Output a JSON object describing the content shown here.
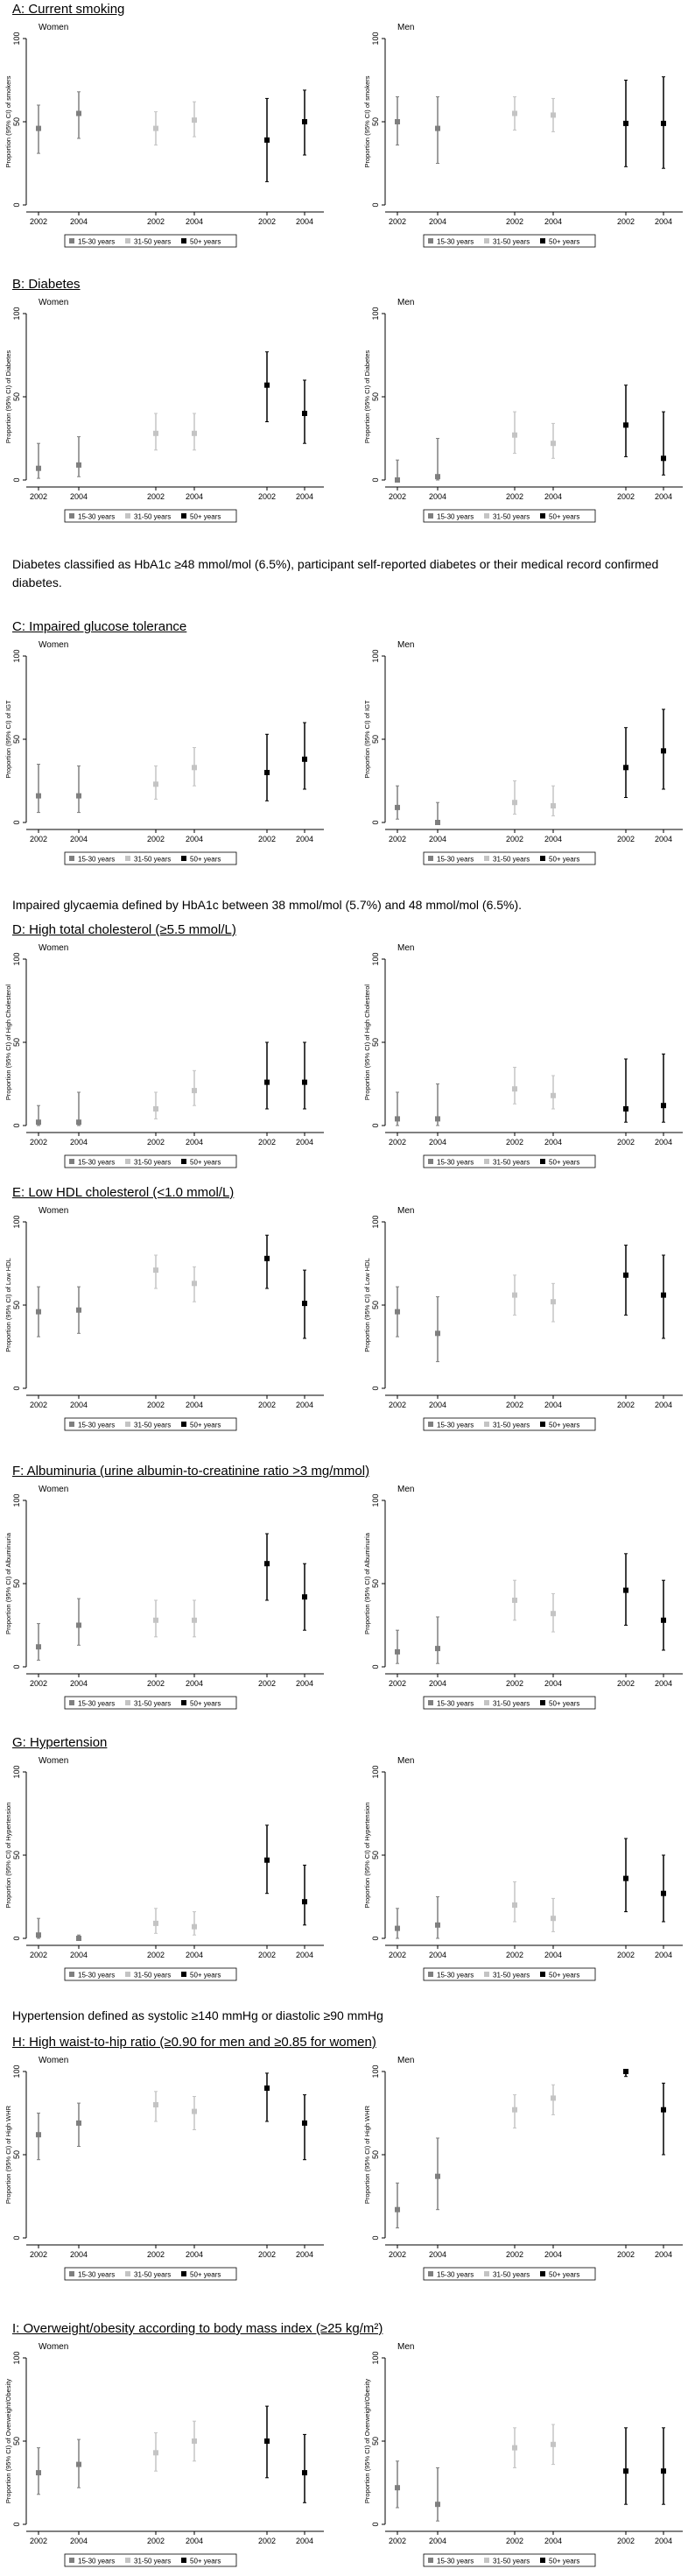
{
  "legend": [
    "15-30 years",
    "31-50 years",
    "50+ years"
  ],
  "colors": {
    "15-30 years": "#7f7f7f",
    "31-50 years": "#c4c4c4",
    "50+ years": "#000000"
  },
  "x_tick_labels": [
    "2002",
    "2004",
    "2002",
    "2004",
    "2002",
    "2004"
  ],
  "y_ticks": [
    0,
    50,
    100
  ],
  "panel_labels": [
    "Women",
    "Men"
  ],
  "notes": {
    "diabetes": "Diabetes classified as HbA1c ≥48 mmol/mol (6.5%), participant self-reported diabetes or their medical record confirmed diabetes.",
    "igt": "Impaired glycaemia defined by HbA1c between 38 mmol/mol (5.7%) and 48 mmol/mol (6.5%).",
    "hypertension": "Hypertension defined as systolic ≥140 mmHg or diastolic ≥90 mmHg"
  },
  "chart_data": [
    {
      "type": "scatter",
      "title": "A: Current smoking",
      "ylabel": "Proportion (95% CI) of smokers",
      "ylim": [
        0,
        100
      ],
      "women": {
        "15-30 years": [
          [
            46,
            31,
            60
          ],
          [
            55,
            40,
            68
          ]
        ],
        "31-50 years": [
          [
            46,
            36,
            56
          ],
          [
            51,
            41,
            62
          ]
        ],
        "50+ years": [
          [
            39,
            14,
            64
          ],
          [
            50,
            30,
            69
          ]
        ]
      },
      "men": {
        "15-30 years": [
          [
            50,
            36,
            65
          ],
          [
            46,
            25,
            65
          ]
        ],
        "31-50 years": [
          [
            55,
            45,
            65
          ],
          [
            54,
            44,
            64
          ]
        ],
        "50+ years": [
          [
            49,
            23,
            75
          ],
          [
            49,
            22,
            77
          ]
        ]
      }
    },
    {
      "type": "scatter",
      "title": "B: Diabetes",
      "ylabel": "Proportion (95% CI) of Diabetes",
      "ylim": [
        0,
        100
      ],
      "women": {
        "15-30 years": [
          [
            7,
            1,
            22
          ],
          [
            9,
            2,
            26
          ]
        ],
        "31-50 years": [
          [
            28,
            18,
            40
          ],
          [
            28,
            18,
            40
          ]
        ],
        "50+ years": [
          [
            57,
            35,
            77
          ],
          [
            40,
            22,
            60
          ]
        ]
      },
      "men": {
        "15-30 years": [
          [
            0,
            0,
            12
          ],
          [
            2,
            0,
            25
          ]
        ],
        "31-50 years": [
          [
            27,
            16,
            41
          ],
          [
            22,
            13,
            34
          ]
        ],
        "50+ years": [
          [
            33,
            14,
            57
          ],
          [
            13,
            3,
            41
          ]
        ]
      }
    },
    {
      "type": "scatter",
      "title": "C: Impaired glucose tolerance",
      "ylabel": "Proportion (95% CI) of IGT",
      "ylim": [
        0,
        100
      ],
      "women": {
        "15-30 years": [
          [
            16,
            6,
            35
          ],
          [
            16,
            6,
            34
          ]
        ],
        "31-50 years": [
          [
            23,
            14,
            34
          ],
          [
            33,
            22,
            45
          ]
        ],
        "50+ years": [
          [
            30,
            13,
            53
          ],
          [
            38,
            20,
            60
          ]
        ]
      },
      "men": {
        "15-30 years": [
          [
            9,
            2,
            22
          ],
          [
            0,
            0,
            12
          ]
        ],
        "31-50 years": [
          [
            12,
            5,
            25
          ],
          [
            10,
            4,
            22
          ]
        ],
        "50+ years": [
          [
            33,
            15,
            57
          ],
          [
            43,
            20,
            68
          ]
        ]
      }
    },
    {
      "type": "scatter",
      "title": "D: High total cholesterol (≥5.5 mmol/L)",
      "ylabel": "Proportion (95% CI) of High Cholesterol",
      "ylim": [
        0,
        100
      ],
      "women": {
        "15-30 years": [
          [
            2,
            0,
            12
          ],
          [
            2,
            0,
            20
          ]
        ],
        "31-50 years": [
          [
            10,
            4,
            20
          ],
          [
            21,
            12,
            33
          ]
        ],
        "50+ years": [
          [
            26,
            10,
            50
          ],
          [
            26,
            10,
            50
          ]
        ]
      },
      "men": {
        "15-30 years": [
          [
            4,
            0,
            20
          ],
          [
            4,
            0,
            25
          ]
        ],
        "31-50 years": [
          [
            22,
            13,
            35
          ],
          [
            18,
            10,
            30
          ]
        ],
        "50+ years": [
          [
            10,
            2,
            40
          ],
          [
            12,
            2,
            43
          ]
        ]
      }
    },
    {
      "type": "scatter",
      "title": "E: Low HDL cholesterol (<1.0 mmol/L)",
      "ylabel": "Proportion (95% CI) of Low HDL",
      "ylim": [
        0,
        100
      ],
      "women": {
        "15-30 years": [
          [
            46,
            31,
            61
          ],
          [
            47,
            33,
            61
          ]
        ],
        "31-50 years": [
          [
            71,
            60,
            80
          ],
          [
            63,
            52,
            73
          ]
        ],
        "50+ years": [
          [
            78,
            60,
            92
          ],
          [
            51,
            30,
            71
          ]
        ]
      },
      "men": {
        "15-30 years": [
          [
            46,
            31,
            61
          ],
          [
            33,
            16,
            55
          ]
        ],
        "31-50 years": [
          [
            56,
            44,
            68
          ],
          [
            52,
            40,
            63
          ]
        ],
        "50+ years": [
          [
            68,
            44,
            86
          ],
          [
            56,
            30,
            80
          ]
        ]
      }
    },
    {
      "type": "scatter",
      "title": "F: Albuminuria (urine albumin-to-creatinine ratio >3 mg/mmol)",
      "ylabel": "Proportion (95% CI) of Albuminuria",
      "ylim": [
        0,
        100
      ],
      "women": {
        "15-30 years": [
          [
            12,
            4,
            26
          ],
          [
            25,
            13,
            41
          ]
        ],
        "31-50 years": [
          [
            28,
            18,
            40
          ],
          [
            28,
            18,
            40
          ]
        ],
        "50+ years": [
          [
            62,
            40,
            80
          ],
          [
            42,
            22,
            62
          ]
        ]
      },
      "men": {
        "15-30 years": [
          [
            9,
            2,
            22
          ],
          [
            11,
            2,
            30
          ]
        ],
        "31-50 years": [
          [
            40,
            28,
            52
          ],
          [
            32,
            21,
            44
          ]
        ],
        "50+ years": [
          [
            46,
            25,
            68
          ],
          [
            28,
            10,
            52
          ]
        ]
      }
    },
    {
      "type": "scatter",
      "title": "G: Hypertension",
      "ylabel": "Proportion (95% CI) of Hypertension",
      "ylim": [
        0,
        100
      ],
      "women": {
        "15-30 years": [
          [
            2,
            0,
            12
          ],
          [
            0,
            0,
            2
          ]
        ],
        "31-50 years": [
          [
            9,
            3,
            18
          ],
          [
            7,
            2,
            16
          ]
        ],
        "50+ years": [
          [
            47,
            27,
            68
          ],
          [
            22,
            8,
            44
          ]
        ]
      },
      "men": {
        "15-30 years": [
          [
            6,
            0,
            18
          ],
          [
            8,
            0,
            25
          ]
        ],
        "31-50 years": [
          [
            20,
            10,
            34
          ],
          [
            12,
            4,
            24
          ]
        ],
        "50+ years": [
          [
            36,
            16,
            60
          ],
          [
            27,
            10,
            50
          ]
        ]
      }
    },
    {
      "type": "scatter",
      "title": "H: High waist-to-hip ratio (≥0.90 for men and ≥0.85 for women)",
      "ylabel": "Proportion (95% CI) of High WHR",
      "ylim": [
        0,
        100
      ],
      "women": {
        "15-30 years": [
          [
            62,
            47,
            75
          ],
          [
            69,
            55,
            81
          ]
        ],
        "31-50 years": [
          [
            80,
            70,
            88
          ],
          [
            76,
            65,
            85
          ]
        ],
        "50+ years": [
          [
            90,
            70,
            99
          ],
          [
            69,
            47,
            86
          ]
        ]
      },
      "men": {
        "15-30 years": [
          [
            17,
            6,
            33
          ],
          [
            37,
            17,
            60
          ]
        ],
        "31-50 years": [
          [
            77,
            66,
            86
          ],
          [
            84,
            74,
            92
          ]
        ],
        "50+ years": [
          [
            100,
            97,
            100
          ],
          [
            77,
            50,
            93
          ]
        ]
      }
    },
    {
      "type": "scatter",
      "title": "I: Overweight/obesity according to body mass index (≥25 kg/m²)",
      "ylabel": "Proportion (95% CI) of Overweight/Obesity",
      "ylim": [
        0,
        100
      ],
      "women": {
        "15-30 years": [
          [
            31,
            18,
            46
          ],
          [
            36,
            22,
            51
          ]
        ],
        "31-50 years": [
          [
            43,
            32,
            55
          ],
          [
            50,
            38,
            62
          ]
        ],
        "50+ years": [
          [
            50,
            28,
            71
          ],
          [
            31,
            13,
            54
          ]
        ]
      },
      "men": {
        "15-30 years": [
          [
            22,
            10,
            38
          ],
          [
            12,
            2,
            34
          ]
        ],
        "31-50 years": [
          [
            46,
            34,
            58
          ],
          [
            48,
            36,
            60
          ]
        ],
        "50+ years": [
          [
            32,
            12,
            58
          ],
          [
            32,
            12,
            58
          ]
        ]
      }
    }
  ]
}
